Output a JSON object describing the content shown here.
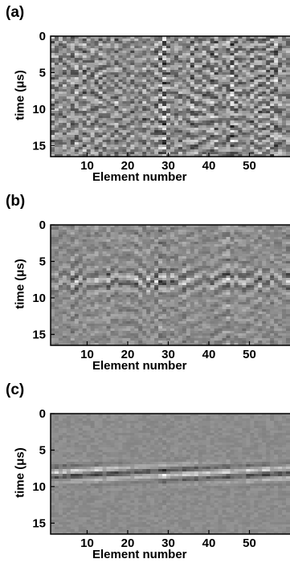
{
  "chart_data": [
    {
      "type": "heatmap",
      "panel_label": "(a)",
      "xlabel": "Element number",
      "ylabel": "time (μs)",
      "x_ticks": [
        10,
        20,
        30,
        40,
        50
      ],
      "y_ticks": [
        0,
        5,
        10,
        15
      ],
      "xlim": [
        1,
        64
      ],
      "ylim": [
        16.5,
        0
      ],
      "colormap": "gray",
      "pattern": "raw"
    },
    {
      "type": "heatmap",
      "panel_label": "(b)",
      "xlabel": "Element number",
      "ylabel": "time (μs)",
      "x_ticks": [
        10,
        20,
        30,
        40,
        50
      ],
      "y_ticks": [
        0,
        5,
        10,
        15
      ],
      "xlim": [
        1,
        64
      ],
      "ylim": [
        16.5,
        0
      ],
      "colormap": "gray",
      "pattern": "partial"
    },
    {
      "type": "heatmap",
      "panel_label": "(c)",
      "xlabel": "Element number",
      "ylabel": "time (μs)",
      "x_ticks": [
        10,
        20,
        30,
        40,
        50
      ],
      "y_ticks": [
        0,
        5,
        10,
        15
      ],
      "xlim": [
        1,
        64
      ],
      "ylim": [
        16.5,
        0
      ],
      "colormap": "gray",
      "pattern": "filtered"
    }
  ]
}
